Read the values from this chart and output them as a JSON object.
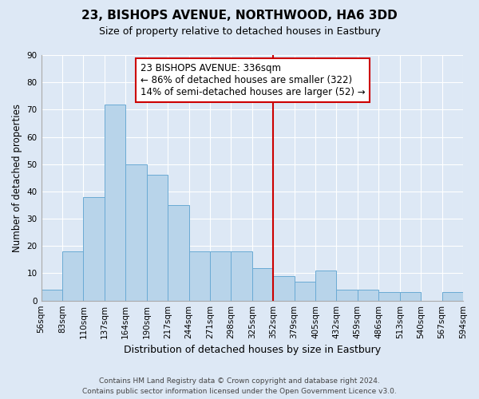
{
  "title": "23, BISHOPS AVENUE, NORTHWOOD, HA6 3DD",
  "subtitle": "Size of property relative to detached houses in Eastbury",
  "xlabel": "Distribution of detached houses by size in Eastbury",
  "ylabel": "Number of detached properties",
  "bin_labels": [
    "56sqm",
    "83sqm",
    "110sqm",
    "137sqm",
    "164sqm",
    "190sqm",
    "217sqm",
    "244sqm",
    "271sqm",
    "298sqm",
    "325sqm",
    "352sqm",
    "379sqm",
    "405sqm",
    "432sqm",
    "459sqm",
    "486sqm",
    "513sqm",
    "540sqm",
    "567sqm",
    "594sqm"
  ],
  "bar_heights": [
    4,
    18,
    38,
    72,
    50,
    46,
    35,
    18,
    18,
    18,
    12,
    9,
    7,
    11,
    4,
    4,
    3,
    3,
    0,
    3
  ],
  "bar_color": "#b8d4ea",
  "bar_edge_color": "#6aaad4",
  "ylim": [
    0,
    90
  ],
  "yticks": [
    0,
    10,
    20,
    30,
    40,
    50,
    60,
    70,
    80,
    90
  ],
  "vline_position": 10.5,
  "vline_color": "#cc0000",
  "annotation_line1": "23 BISHOPS AVENUE: 336sqm",
  "annotation_line2": "← 86% of detached houses are smaller (322)",
  "annotation_line3": "14% of semi-detached houses are larger (52) →",
  "annotation_box_facecolor": "#ffffff",
  "annotation_box_edgecolor": "#cc0000",
  "footer_line1": "Contains HM Land Registry data © Crown copyright and database right 2024.",
  "footer_line2": "Contains public sector information licensed under the Open Government Licence v3.0.",
  "bg_color": "#dde8f5",
  "plot_bg_color": "#dde8f5",
  "grid_color": "#ffffff",
  "title_fontsize": 11,
  "subtitle_fontsize": 9,
  "ylabel_fontsize": 8.5,
  "xlabel_fontsize": 9,
  "tick_labelsize": 7.5,
  "annot_fontsize": 8.5,
  "footer_fontsize": 6.5
}
